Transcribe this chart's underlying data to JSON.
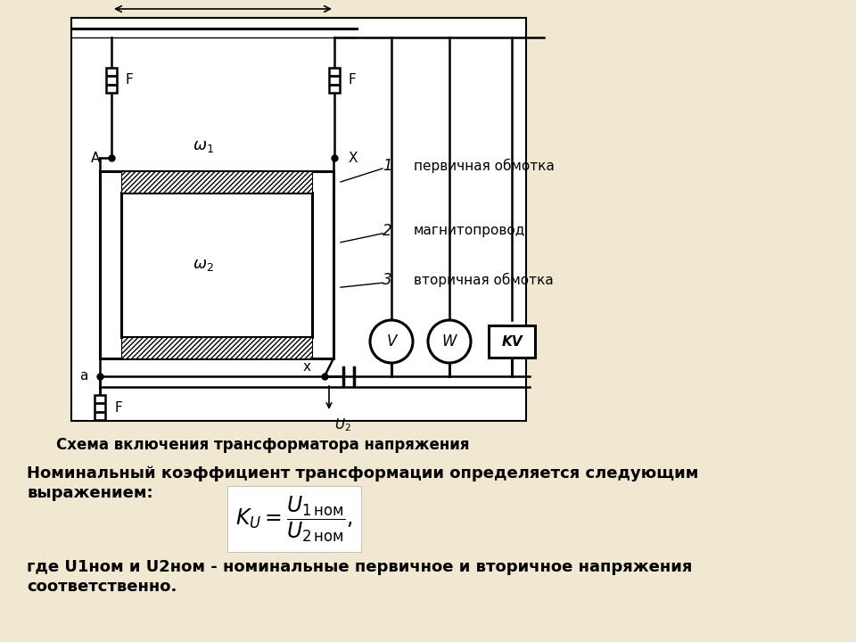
{
  "bg_color": "#f0e8d0",
  "diagram_bg": "#ffffff",
  "title": "Схема включения трансформатора напряжения",
  "text1_line1": "Номинальный коэффициент трансформации определяется следующим",
  "text1_line2": "выражением:",
  "text2_line1": "где U1ном и U2ном - номинальные первичное и вторичное напряжения",
  "text2_line2": "соответственно.",
  "label1": "первичная обмотка",
  "label2": "магнитопровод",
  "label3": "вторичная обмотка",
  "font_size_title": 12,
  "font_size_text": 13,
  "font_size_label": 11,
  "lw": 1.8,
  "lw2": 2.2
}
